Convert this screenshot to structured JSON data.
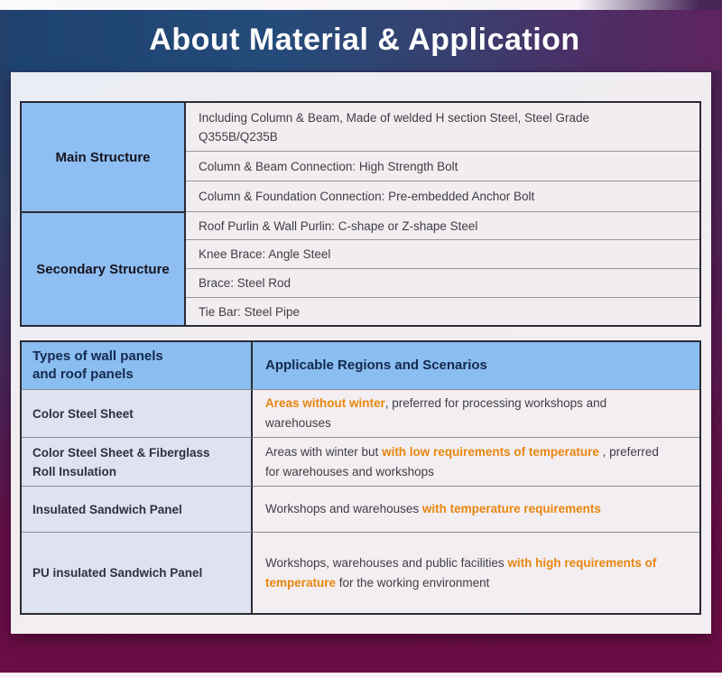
{
  "banner": {
    "title": "About Material & Application"
  },
  "colors": {
    "banner_blue_left": "#1d4270",
    "banner_purple_right": "#5e235f",
    "background_navy": "#20406b",
    "background_maroon": "#6b0d45",
    "label_blue": "#8fbef2",
    "header_blue": "#8abdf0",
    "type_cell_lavender": "#dfe2f0",
    "content_cell": "#f2edf0",
    "highlight_orange": "#e8860e"
  },
  "structure_table": {
    "sections": [
      {
        "label": "Main Structure",
        "rows": [
          {
            "line1": "Including Column & Beam, Made of welded H section Steel, Steel Grade",
            "line2": "Q355B/Q235B"
          },
          {
            "line1": "Column & Beam Connection: High Strength Bolt",
            "line2": ""
          },
          {
            "line1": "Column & Foundation Connection: Pre-embedded Anchor Bolt",
            "line2": ""
          }
        ]
      },
      {
        "label": "Secondary Structure",
        "rows": [
          {
            "line1": "Roof Purlin & Wall Purlin: C-shape or Z-shape Steel",
            "line2": ""
          },
          {
            "line1": "Knee Brace: Angle Steel",
            "line2": ""
          },
          {
            "line1": "Brace: Steel Rod",
            "line2": ""
          },
          {
            "line1": "Tie Bar: Steel Pipe",
            "line2": ""
          }
        ]
      }
    ]
  },
  "panels_table": {
    "header": {
      "col1_line1": "Types of wall panels",
      "col1_line2": "and roof panels",
      "col2": "Applicable Regions and Scenarios"
    },
    "rows": [
      {
        "type_line1": "Color Steel Sheet",
        "type_line2": "",
        "pre": "",
        "highlight": "Areas without winter",
        "post": ", preferred for processing workshops and warehouses"
      },
      {
        "type_line1": "Color Steel Sheet & Fiberglass",
        "type_line2": "Roll Insulation",
        "pre": "Areas with winter but ",
        "highlight": "with low requirements of temperature",
        "post": " , preferred for warehouses and workshops"
      },
      {
        "type_line1": "Insulated Sandwich Panel",
        "type_line2": "",
        "pre": "Workshops and warehouses ",
        "highlight": "with temperature requirements",
        "post": ""
      },
      {
        "type_line1": "PU insulated Sandwich Panel",
        "type_line2": "",
        "pre": "Workshops, warehouses and public facilities ",
        "highlight": "with high requirements of temperature",
        "post": " for the working environment"
      }
    ]
  }
}
